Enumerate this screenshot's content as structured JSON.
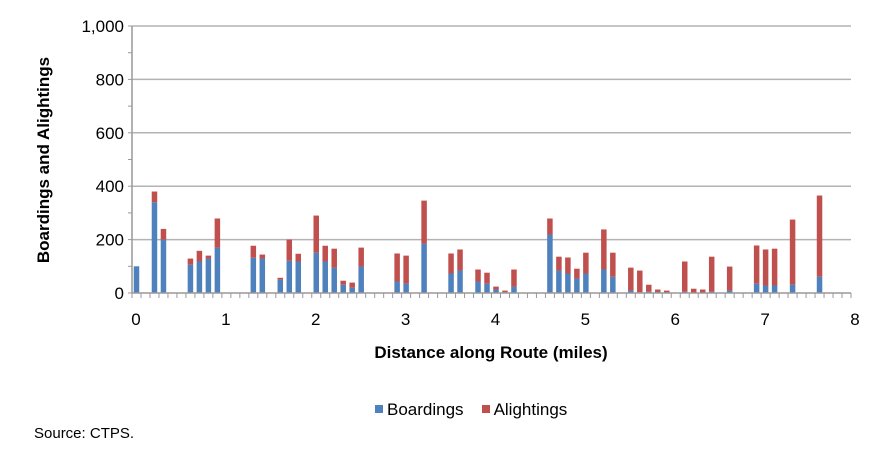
{
  "chart_data": {
    "type": "bar",
    "stacked": true,
    "title": "",
    "xlabel": "Distance along Route (miles)",
    "ylabel": "Boardings and Alightings",
    "xlim": [
      0,
      8
    ],
    "ylim": [
      0,
      1000
    ],
    "x_ticks": [
      "0",
      "1",
      "2",
      "3",
      "4",
      "5",
      "6",
      "7",
      "8"
    ],
    "y_ticks": [
      "0",
      "200",
      "400",
      "600",
      "800",
      "1,000"
    ],
    "grid": true,
    "legend_position": "bottom",
    "colors": {
      "Boardings": "#4F81BD",
      "Alightings": "#C0504D"
    },
    "x": [
      0.0,
      0.2,
      0.3,
      0.6,
      0.7,
      0.8,
      0.9,
      1.3,
      1.4,
      1.6,
      1.7,
      1.8,
      2.0,
      2.1,
      2.2,
      2.3,
      2.4,
      2.5,
      2.9,
      3.0,
      3.2,
      3.5,
      3.6,
      3.8,
      3.9,
      4.0,
      4.1,
      4.2,
      4.6,
      4.7,
      4.8,
      4.9,
      5.0,
      5.2,
      5.3,
      5.5,
      5.6,
      5.7,
      5.8,
      5.9,
      6.1,
      6.2,
      6.3,
      6.4,
      6.6,
      6.9,
      7.0,
      7.1,
      7.3,
      7.6
    ],
    "series": [
      {
        "name": "Boardings",
        "values": [
          100,
          340,
          200,
          106,
          118,
          129,
          170,
          132,
          129,
          50,
          121,
          118,
          151,
          118,
          95,
          31,
          20,
          99,
          43,
          35,
          185,
          73,
          84,
          43,
          35,
          13,
          3,
          24,
          219,
          84,
          73,
          54,
          73,
          88,
          61,
          9,
          3,
          5,
          4,
          1,
          5,
          1,
          1,
          5,
          9,
          35,
          28,
          28,
          31,
          61
        ]
      },
      {
        "name": "Alightings",
        "values": [
          0,
          40,
          40,
          23,
          40,
          11,
          109,
          45,
          15,
          7,
          79,
          29,
          139,
          59,
          71,
          15,
          19,
          71,
          105,
          105,
          161,
          75,
          79,
          45,
          41,
          11,
          6,
          64,
          60,
          52,
          60,
          37,
          78,
          150,
          90,
          86,
          81,
          26,
          9,
          8,
          113,
          15,
          12,
          131,
          90,
          143,
          135,
          138,
          244,
          304
        ]
      }
    ]
  },
  "legend": {
    "items": [
      {
        "label": "Boardings",
        "color": "#4F81BD"
      },
      {
        "label": "Alightings",
        "color": "#C0504D"
      }
    ]
  },
  "source": "Source: CTPS."
}
